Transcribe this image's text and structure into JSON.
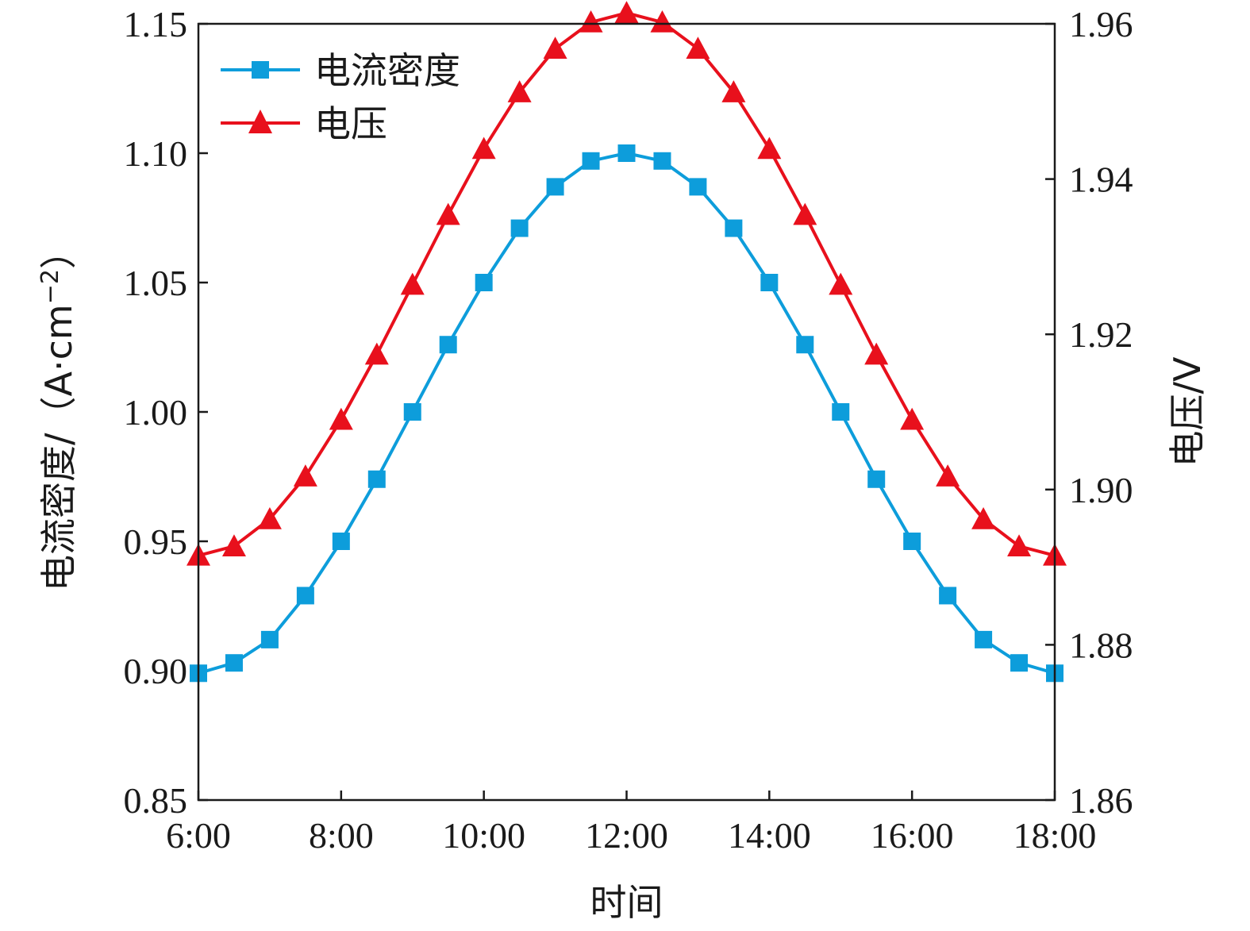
{
  "chart_data": {
    "type": "line",
    "x": [
      "6:00",
      "6:30",
      "7:00",
      "7:30",
      "8:00",
      "8:30",
      "9:00",
      "9:30",
      "10:00",
      "10:30",
      "11:00",
      "11:30",
      "12:00",
      "12:30",
      "13:00",
      "13:30",
      "14:00",
      "14:30",
      "15:00",
      "15:30",
      "16:00",
      "16:30",
      "17:00",
      "17:30",
      "18:00"
    ],
    "xlabel": "时间",
    "x_ticks": [
      "6:00",
      "8:00",
      "10:00",
      "12:00",
      "14:00",
      "16:00",
      "18:00"
    ],
    "ylabel_left": "电流密度/（A·cm",
    "ylabel_left_sup": "−2",
    "ylabel_left_close": "）",
    "ylabel_right": "电压/V",
    "ylim_left": [
      0.85,
      1.15
    ],
    "ylim_right": [
      1.86,
      1.96
    ],
    "y_ticks_left": [
      "0.85",
      "0.90",
      "0.95",
      "1.00",
      "1.05",
      "1.10",
      "1.15"
    ],
    "y_ticks_right": [
      "1.86",
      "1.88",
      "1.90",
      "1.92",
      "1.94",
      "1.96"
    ],
    "grid": false,
    "legend_position": "top-left",
    "series": [
      {
        "name": "电流密度",
        "axis": "left",
        "marker": "square",
        "color": "#0d9ddb",
        "values": [
          0.899,
          0.903,
          0.912,
          0.929,
          0.95,
          0.974,
          1.0,
          1.026,
          1.05,
          1.071,
          1.087,
          1.097,
          1.1,
          1.097,
          1.087,
          1.071,
          1.05,
          1.026,
          1.0,
          0.974,
          0.95,
          0.929,
          0.912,
          0.903,
          0.899
        ]
      },
      {
        "name": "电压",
        "axis": "right",
        "marker": "triangle",
        "color": "#e8101c",
        "values": [
          1.8915,
          1.8927,
          1.8962,
          1.9017,
          1.909,
          1.9174,
          1.9264,
          1.9354,
          1.9439,
          1.9512,
          1.9568,
          1.9602,
          1.9614,
          1.9602,
          1.9568,
          1.9512,
          1.9439,
          1.9354,
          1.9264,
          1.9174,
          1.909,
          1.9017,
          1.8962,
          1.8927,
          1.8915
        ]
      }
    ]
  }
}
